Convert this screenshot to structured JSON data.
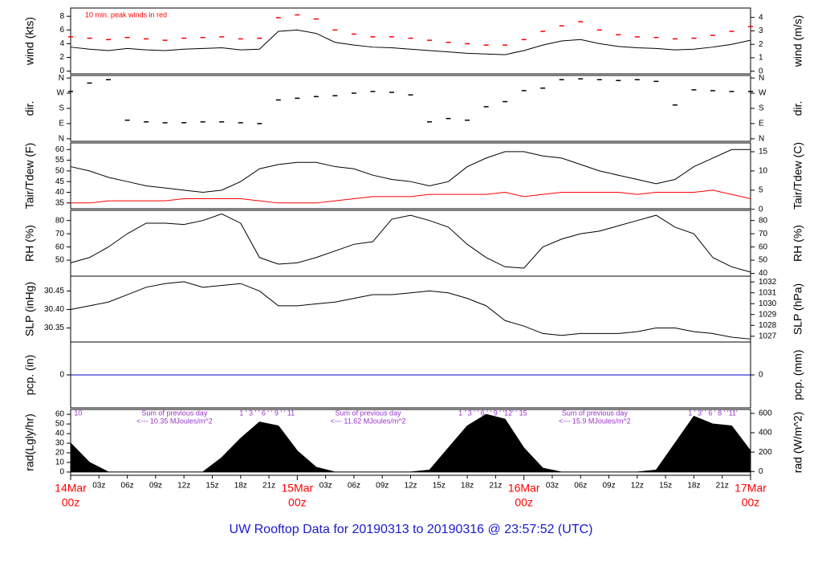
{
  "title": "UW Rooftop Data for 20190313  to  20190316 @ 23:57:52  (UTC)",
  "chart_data": [
    {
      "type": "line",
      "ylabel": "wind (kts)",
      "y2label": "wind (m/s)",
      "annotation": "10 min. peak winds in red",
      "xlim": [
        0,
        72
      ],
      "ylim": [
        -0.4,
        9.2
      ],
      "yticks": [
        0,
        2,
        4,
        6,
        8
      ],
      "y2lim": [
        -0.2,
        4.7
      ],
      "y2ticks": [
        0,
        1,
        2,
        3,
        4
      ],
      "x": [
        0,
        2,
        4,
        6,
        8,
        10,
        12,
        14,
        16,
        18,
        20,
        22,
        24,
        26,
        28,
        30,
        32,
        34,
        36,
        38,
        40,
        42,
        44,
        46,
        48,
        50,
        52,
        54,
        56,
        58,
        60,
        62,
        64,
        66,
        68,
        70,
        72
      ],
      "series": [
        {
          "name": "wind",
          "color": "#000000",
          "marker": "line",
          "values": [
            3.5,
            3.2,
            3.0,
            3.3,
            3.1,
            3.0,
            3.2,
            3.3,
            3.4,
            3.1,
            3.2,
            5.8,
            6.0,
            5.5,
            4.2,
            3.8,
            3.5,
            3.4,
            3.2,
            3.0,
            2.8,
            2.6,
            2.5,
            2.4,
            3.0,
            3.8,
            4.4,
            4.6,
            4.0,
            3.6,
            3.4,
            3.3,
            3.1,
            3.2,
            3.5,
            3.9,
            4.5
          ]
        },
        {
          "name": "peak",
          "color": "#ff0000",
          "marker": "dash",
          "values": [
            5.0,
            4.8,
            4.6,
            4.9,
            4.7,
            4.5,
            4.8,
            4.9,
            5.0,
            4.7,
            4.8,
            7.8,
            8.2,
            7.6,
            6.0,
            5.4,
            5.0,
            5.0,
            4.8,
            4.5,
            4.2,
            4.0,
            3.8,
            3.8,
            4.6,
            5.8,
            6.6,
            7.2,
            6.0,
            5.3,
            5.0,
            4.9,
            4.7,
            4.8,
            5.2,
            5.8,
            6.5
          ]
        }
      ]
    },
    {
      "type": "scatter",
      "ylabel": "dir.",
      "y2label": "dir.",
      "xlim": [
        0,
        72
      ],
      "ylim": [
        -15,
        375
      ],
      "yticks": [
        {
          "value": 0,
          "label": "N"
        },
        {
          "value": 90,
          "label": "E"
        },
        {
          "value": 180,
          "label": "S"
        },
        {
          "value": 270,
          "label": "W"
        },
        {
          "value": 360,
          "label": "N"
        }
      ],
      "y2lim": [
        -15,
        375
      ],
      "y2ticks": [
        {
          "value": 0,
          "label": "N"
        },
        {
          "value": 90,
          "label": "E"
        },
        {
          "value": 180,
          "label": "S"
        },
        {
          "value": 270,
          "label": "W"
        },
        {
          "value": 360,
          "label": "N"
        }
      ],
      "x": [
        0,
        2,
        4,
        6,
        8,
        10,
        12,
        14,
        16,
        18,
        20,
        22,
        24,
        26,
        28,
        30,
        32,
        34,
        36,
        38,
        40,
        42,
        44,
        46,
        48,
        50,
        52,
        54,
        56,
        58,
        60,
        62,
        64,
        66,
        68,
        70,
        72
      ],
      "series": [
        {
          "name": "dir",
          "color": "#000000",
          "marker": "dash",
          "values": [
            280,
            330,
            350,
            110,
            100,
            95,
            95,
            100,
            100,
            95,
            90,
            230,
            240,
            250,
            255,
            270,
            280,
            275,
            260,
            100,
            120,
            110,
            190,
            220,
            285,
            300,
            350,
            355,
            350,
            345,
            350,
            340,
            200,
            290,
            285,
            280,
            280
          ]
        }
      ]
    },
    {
      "type": "line",
      "ylabel": "Tair/Tdew (F)",
      "y2label": "Tair/Tdew (C)",
      "xlim": [
        0,
        72
      ],
      "ylim": [
        32.3,
        63.1
      ],
      "yticks": [
        35,
        40,
        45,
        50,
        55,
        60
      ],
      "y2lim": [
        0.15,
        17.3
      ],
      "y2ticks": [
        0,
        5,
        10,
        15
      ],
      "x": [
        0,
        2,
        4,
        6,
        8,
        10,
        12,
        14,
        16,
        18,
        20,
        22,
        24,
        26,
        28,
        30,
        32,
        34,
        36,
        38,
        40,
        42,
        44,
        46,
        48,
        50,
        52,
        54,
        56,
        58,
        60,
        62,
        64,
        66,
        68,
        70,
        72
      ],
      "series": [
        {
          "name": "Tair",
          "color": "#000000",
          "marker": "line",
          "values": [
            52,
            50,
            47,
            45,
            43,
            42,
            41,
            40,
            41,
            45,
            51,
            53,
            54,
            54,
            52,
            51,
            48,
            46,
            45,
            43,
            45,
            52,
            56,
            59,
            59,
            57,
            56,
            53,
            50,
            48,
            46,
            44,
            46,
            52,
            56,
            60,
            60
          ]
        },
        {
          "name": "Tdew",
          "color": "#ff0000",
          "marker": "line",
          "values": [
            35,
            35,
            36,
            36,
            36,
            36,
            37,
            37,
            37,
            37,
            36,
            35,
            35,
            35,
            36,
            37,
            38,
            38,
            38,
            39,
            39,
            39,
            39,
            40,
            38,
            39,
            40,
            40,
            40,
            40,
            39,
            40,
            40,
            40,
            41,
            39,
            37
          ]
        }
      ]
    },
    {
      "type": "line",
      "ylabel": "RH (%)",
      "y2label": "RH (%)",
      "xlim": [
        0,
        72
      ],
      "ylim": [
        37.9,
        87.7
      ],
      "yticks": [
        50,
        60,
        70,
        80
      ],
      "y2lim": [
        37.9,
        87.7
      ],
      "y2ticks": [
        40,
        50,
        60,
        70,
        80
      ],
      "x": [
        0,
        2,
        4,
        6,
        8,
        10,
        12,
        14,
        16,
        18,
        20,
        22,
        24,
        26,
        28,
        30,
        32,
        34,
        36,
        38,
        40,
        42,
        44,
        46,
        48,
        50,
        52,
        54,
        56,
        58,
        60,
        62,
        64,
        66,
        68,
        70,
        72
      ],
      "series": [
        {
          "name": "RH",
          "color": "#000000",
          "marker": "line",
          "values": [
            48,
            52,
            60,
            70,
            78,
            78,
            77,
            80,
            85,
            78,
            52,
            47,
            48,
            52,
            57,
            62,
            64,
            81,
            84,
            80,
            75,
            62,
            52,
            45,
            44,
            60,
            66,
            70,
            72,
            76,
            80,
            84,
            75,
            70,
            52,
            45,
            41
          ]
        }
      ]
    },
    {
      "type": "line",
      "ylabel": "SLP (inHg)",
      "y2label": "SLP (hPa)",
      "xlim": [
        0,
        72
      ],
      "ylim": [
        30.312,
        30.49
      ],
      "yticks": [
        30.35,
        {
          "value": 30.4,
          "label": "30.40"
        },
        30.45
      ],
      "y2lim": [
        1026.47,
        1032.53
      ],
      "y2ticks": [
        1027,
        1028,
        1029,
        1030,
        1031,
        1032
      ],
      "x": [
        0,
        2,
        4,
        6,
        8,
        10,
        12,
        14,
        16,
        18,
        20,
        22,
        24,
        26,
        28,
        30,
        32,
        34,
        36,
        38,
        40,
        42,
        44,
        46,
        48,
        50,
        52,
        54,
        56,
        58,
        60,
        62,
        64,
        66,
        68,
        70,
        72
      ],
      "series": [
        {
          "name": "SLP",
          "color": "#000000",
          "marker": "line",
          "values": [
            30.4,
            30.41,
            30.42,
            30.44,
            30.46,
            30.47,
            30.475,
            30.46,
            30.465,
            30.47,
            30.45,
            30.41,
            30.41,
            30.415,
            30.42,
            30.43,
            30.44,
            30.44,
            30.445,
            30.45,
            30.445,
            30.43,
            30.41,
            30.37,
            30.355,
            30.335,
            30.33,
            30.335,
            30.335,
            30.335,
            30.34,
            30.35,
            30.35,
            30.34,
            30.335,
            30.325,
            30.32
          ]
        }
      ]
    },
    {
      "type": "line",
      "ylabel": "pcp. (in)",
      "y2label": "pcp. (mm)",
      "xlim": [
        0,
        72
      ],
      "ylim": [
        -1,
        1
      ],
      "yticks": [
        0
      ],
      "y2lim": [
        -1,
        1
      ],
      "y2ticks": [
        0
      ],
      "x": [
        0,
        2,
        4,
        6,
        8,
        10,
        12,
        14,
        16,
        18,
        20,
        22,
        24,
        26,
        28,
        30,
        32,
        34,
        36,
        38,
        40,
        42,
        44,
        46,
        48,
        50,
        52,
        54,
        56,
        58,
        60,
        62,
        64,
        66,
        68,
        70,
        72
      ],
      "series": [
        {
          "name": "pcp",
          "color": "#0000cc",
          "marker": "line",
          "values": [
            0,
            0,
            0,
            0,
            0,
            0,
            0,
            0,
            0,
            0,
            0,
            0,
            0,
            0,
            0,
            0,
            0,
            0,
            0,
            0,
            0,
            0,
            0,
            0,
            0,
            0,
            0,
            0,
            0,
            0,
            0,
            0,
            0,
            0,
            0,
            0,
            0
          ]
        }
      ]
    },
    {
      "type": "area",
      "ylabel": "rad(Lgly/hr)",
      "y2label": "rad (W/m^2)",
      "xlim": [
        0,
        72
      ],
      "ylim": [
        -3.4,
        65.1
      ],
      "yticks": [
        0,
        10,
        20,
        30,
        40,
        50,
        60
      ],
      "y2lim": [
        -39,
        640
      ],
      "y2ticks": [
        0,
        200,
        400,
        600
      ],
      "x": [
        0,
        2,
        4,
        6,
        8,
        10,
        12,
        14,
        16,
        18,
        20,
        22,
        24,
        26,
        28,
        30,
        32,
        34,
        36,
        38,
        40,
        42,
        44,
        46,
        48,
        50,
        52,
        54,
        56,
        58,
        60,
        62,
        64,
        66,
        68,
        70,
        72
      ],
      "series": [
        {
          "name": "rad",
          "color": "#000000",
          "marker": "area",
          "values": [
            30,
            10,
            0,
            0,
            0,
            0,
            0,
            0,
            15,
            35,
            52,
            48,
            22,
            5,
            0,
            0,
            0,
            0,
            0,
            2,
            25,
            48,
            60,
            55,
            25,
            4,
            0,
            0,
            0,
            0,
            0,
            2,
            30,
            58,
            50,
            48,
            22
          ]
        }
      ],
      "hour_marks": [
        {
          "x": 0.8,
          "text": "10"
        },
        {
          "x": 20.8,
          "text": "1  ' 3 '  ' 6 '  ' 9 '  ' 11"
        },
        {
          "x": 44.7,
          "text": "1  ' 3 '  ' 6 '  ' 9 '  '12'  ' 15"
        },
        {
          "x": 68.0,
          "text": "1 ' 3' ' 6 ' 8 ' '11'"
        }
      ],
      "day_sums": [
        {
          "x": 11,
          "lines": [
            "Sum of previous day",
            "<--- 10.35 MJoules/m^2"
          ]
        },
        {
          "x": 31.5,
          "lines": [
            "Sum of previous day",
            "<--- 11.62 MJoules/m^2"
          ]
        },
        {
          "x": 55.5,
          "lines": [
            "Sum of previous day",
            "<--- 15.9 MJoules/m^2"
          ]
        }
      ],
      "xticks": [
        {
          "value": 3,
          "label": "03z"
        },
        {
          "value": 6,
          "label": "06z"
        },
        {
          "value": 9,
          "label": "09z"
        },
        {
          "value": 12,
          "label": "12z"
        },
        {
          "value": 15,
          "label": "15z"
        },
        {
          "value": 18,
          "label": "18z"
        },
        {
          "value": 21,
          "label": "21z"
        },
        {
          "value": 27,
          "label": "03z"
        },
        {
          "value": 30,
          "label": "06z"
        },
        {
          "value": 33,
          "label": "09z"
        },
        {
          "value": 36,
          "label": "12z"
        },
        {
          "value": 39,
          "label": "15z"
        },
        {
          "value": 42,
          "label": "18z"
        },
        {
          "value": 45,
          "label": "21z"
        },
        {
          "value": 51,
          "label": "03z"
        },
        {
          "value": 54,
          "label": "06z"
        },
        {
          "value": 57,
          "label": "09z"
        },
        {
          "value": 60,
          "label": "12z"
        },
        {
          "value": 63,
          "label": "15z"
        },
        {
          "value": 66,
          "label": "18z"
        },
        {
          "value": 69,
          "label": "21z"
        }
      ],
      "day_ticks": [
        {
          "value": 0,
          "date": "14Mar",
          "time": "00z"
        },
        {
          "value": 24,
          "date": "15Mar",
          "time": "00z"
        },
        {
          "value": 48,
          "date": "16Mar",
          "time": "00z"
        },
        {
          "value": 72,
          "date": "17Mar",
          "time": "00z"
        }
      ]
    }
  ]
}
